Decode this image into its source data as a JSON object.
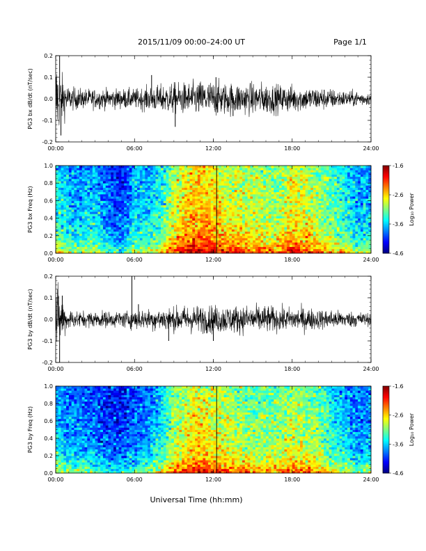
{
  "header": {
    "title": "2015/11/09  00:00–24:00 UT",
    "page": "Page 1/1"
  },
  "footer": {
    "xlabel": "Universal Time (hh:mm)"
  },
  "colorbar": {
    "label": "Log₁₀ Power",
    "ticks": [
      "-1.6",
      "-2.6",
      "-3.6",
      "-4.6"
    ],
    "range": [
      -4.6,
      -1.6
    ]
  },
  "colors": {
    "trace": "#000000",
    "marker": "#000000"
  },
  "chart_data": [
    {
      "type": "line",
      "ylabel": "PG3 bx dB/dt (nT/sec)",
      "xlim": [
        0,
        24
      ],
      "ylim": [
        -0.2,
        0.2
      ],
      "xticks": [
        "00:00",
        "06:00",
        "12:00",
        "18:00",
        "24:00"
      ],
      "yticks": [
        "0.2",
        "0.1",
        "0.0",
        "-0.1",
        "-0.2"
      ],
      "series": [
        {
          "x": [
            0,
            0.5,
            1,
            2,
            3,
            4,
            5,
            6,
            7,
            8,
            9,
            10,
            11,
            12,
            13,
            14,
            15,
            16,
            17,
            18,
            19,
            20,
            21,
            22,
            23,
            24
          ],
          "amplitude": [
            0.22,
            0.12,
            0.06,
            0.05,
            0.05,
            0.05,
            0.05,
            0.05,
            0.06,
            0.07,
            0.08,
            0.08,
            0.09,
            0.09,
            0.08,
            0.08,
            0.08,
            0.08,
            0.07,
            0.07,
            0.06,
            0.06,
            0.05,
            0.04,
            0.04,
            0.03
          ]
        }
      ],
      "spikes": [
        [
          0.3,
          0.2
        ],
        [
          0.4,
          -0.17
        ],
        [
          7.3,
          0.11
        ],
        [
          9.1,
          -0.13
        ],
        [
          12.2,
          0.1
        ],
        [
          13.5,
          -0.08
        ]
      ]
    },
    {
      "type": "heatmap",
      "ylabel": "PG3 bx Freq (Hz)",
      "xlim": [
        0,
        24
      ],
      "ylim": [
        0,
        1.0
      ],
      "xticks": [
        "00:00",
        "06:00",
        "12:00",
        "18:00",
        "24:00"
      ],
      "yticks": [
        "1.0",
        "0.8",
        "0.6",
        "0.4",
        "0.2",
        "0.0"
      ],
      "time_hours": [
        0,
        1,
        2,
        3,
        4,
        5,
        6,
        7,
        8,
        9,
        10,
        11,
        12,
        13,
        14,
        15,
        16,
        17,
        18,
        19,
        20,
        21,
        22,
        23,
        24
      ],
      "log_power_mid": [
        -3.4,
        -3.6,
        -3.7,
        -3.6,
        -3.9,
        -4.1,
        -3.6,
        -3.6,
        -3.4,
        -2.9,
        -2.6,
        -2.5,
        -2.6,
        -2.8,
        -2.8,
        -2.9,
        -3.0,
        -3.0,
        -2.7,
        -2.8,
        -3.0,
        -3.2,
        -3.4,
        -3.7,
        -3.6
      ],
      "marker_hour": 12.25
    },
    {
      "type": "line",
      "ylabel": "PG3 by dB/dt (nT/sec)",
      "xlim": [
        0,
        24
      ],
      "ylim": [
        -0.2,
        0.2
      ],
      "xticks": [
        "00:00",
        "06:00",
        "12:00",
        "18:00",
        "24:00"
      ],
      "yticks": [
        "0.2",
        "0.1",
        "0.0",
        "-0.1",
        "-0.2"
      ],
      "series": [
        {
          "x": [
            0,
            0.5,
            1,
            2,
            3,
            4,
            5,
            6,
            7,
            8,
            9,
            10,
            11,
            12,
            13,
            14,
            15,
            16,
            17,
            18,
            19,
            20,
            21,
            22,
            23,
            24
          ],
          "amplitude": [
            0.18,
            0.1,
            0.05,
            0.04,
            0.04,
            0.04,
            0.04,
            0.05,
            0.05,
            0.06,
            0.06,
            0.07,
            0.07,
            0.07,
            0.07,
            0.07,
            0.07,
            0.07,
            0.06,
            0.06,
            0.06,
            0.05,
            0.05,
            0.04,
            0.04,
            0.03
          ]
        }
      ],
      "spikes": [
        [
          0.3,
          -0.21
        ],
        [
          0.5,
          0.11
        ],
        [
          5.8,
          0.2
        ],
        [
          6.3,
          0.07
        ],
        [
          8.6,
          -0.1
        ],
        [
          12.0,
          -0.1
        ]
      ]
    },
    {
      "type": "heatmap",
      "ylabel": "PG3 by Freq (Hz)",
      "xlim": [
        0,
        24
      ],
      "ylim": [
        0,
        1.0
      ],
      "xticks": [
        "00:00",
        "06:00",
        "12:00",
        "18:00",
        "24:00"
      ],
      "yticks": [
        "1.0",
        "0.8",
        "0.6",
        "0.4",
        "0.2",
        "0.0"
      ],
      "time_hours": [
        0,
        1,
        2,
        3,
        4,
        5,
        6,
        7,
        8,
        9,
        10,
        11,
        12,
        13,
        14,
        15,
        16,
        17,
        18,
        19,
        20,
        21,
        22,
        23,
        24
      ],
      "log_power_mid": [
        -3.6,
        -3.8,
        -3.8,
        -3.9,
        -4.1,
        -4.1,
        -3.9,
        -3.8,
        -3.5,
        -3.0,
        -2.8,
        -2.7,
        -2.8,
        -2.9,
        -3.0,
        -3.1,
        -3.1,
        -3.1,
        -2.9,
        -3.0,
        -3.1,
        -3.4,
        -3.6,
        -3.8,
        -3.8
      ],
      "marker_hour": 12.25
    }
  ]
}
